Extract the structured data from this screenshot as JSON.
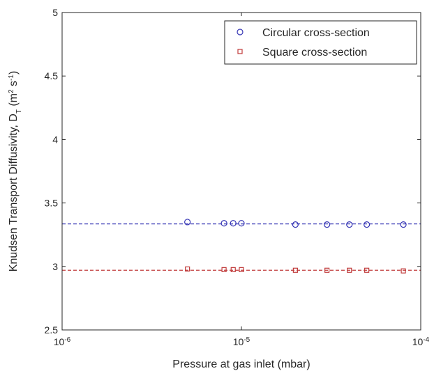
{
  "chart_data": {
    "type": "scatter",
    "xlabel": "Pressure at gas inlet (mbar)",
    "ylabel": "Knudsen Transport Diffusivity, D_T (m^2 s^-1)",
    "x": [
      5e-06,
      8e-06,
      9e-06,
      1e-05,
      2e-05,
      3e-05,
      4e-05,
      5e-05,
      8e-05
    ],
    "series": [
      {
        "name": "Circular cross-section",
        "color": "#3434b4",
        "marker": "circle",
        "values": [
          3.35,
          3.34,
          3.34,
          3.34,
          3.33,
          3.33,
          3.33,
          3.33,
          3.33
        ]
      },
      {
        "name": "Square cross-section",
        "color": "#c03a3a",
        "marker": "square",
        "values": [
          2.98,
          2.975,
          2.975,
          2.975,
          2.97,
          2.97,
          2.97,
          2.97,
          2.965
        ]
      }
    ],
    "fit_lines": [
      {
        "value": 3.335,
        "color": "#3434b4"
      },
      {
        "value": 2.97,
        "color": "#c03a3a"
      }
    ],
    "xscale": "log",
    "xlim": [
      1e-06,
      0.0001
    ],
    "xticks": [
      {
        "value": 1e-06,
        "label": "10^-6"
      },
      {
        "value": 1e-05,
        "label": "10^-5"
      },
      {
        "value": 0.0001,
        "label": "10^-4"
      }
    ],
    "ylim": [
      2.5,
      5
    ],
    "yticks": [
      2.5,
      3,
      3.5,
      4,
      4.5,
      5
    ],
    "legend": "top-right"
  }
}
